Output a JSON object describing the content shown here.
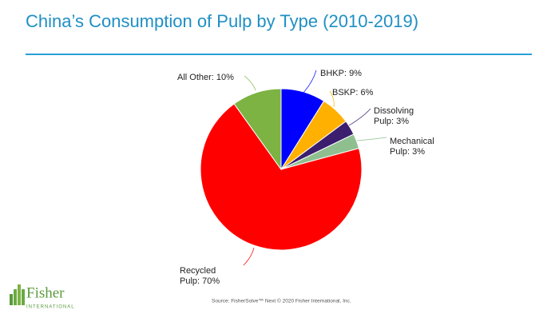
{
  "chart_data": {
    "type": "pie",
    "title": "China’s Consumption of Pulp by Type (2010-2019)",
    "values": [
      9,
      6,
      3,
      3,
      70,
      10
    ],
    "value_labels": [
      "BHKP: 9%",
      "BSKP: 6%",
      "Dissolving Pulp: 3%",
      "Mechanical Pulp: 3%",
      "Recycled Pulp: 70%",
      "All Other: 10%"
    ],
    "colors": [
      "#0000ff",
      "#ffb000",
      "#3b1e6e",
      "#8fbf8f",
      "#ff0000",
      "#7cb342"
    ],
    "source": "Source: FisherSolve™ Next © 2020 Fisher International, Inc."
  },
  "logo": {
    "name": "Fisher",
    "tagline": "INTERNATIONAL"
  }
}
